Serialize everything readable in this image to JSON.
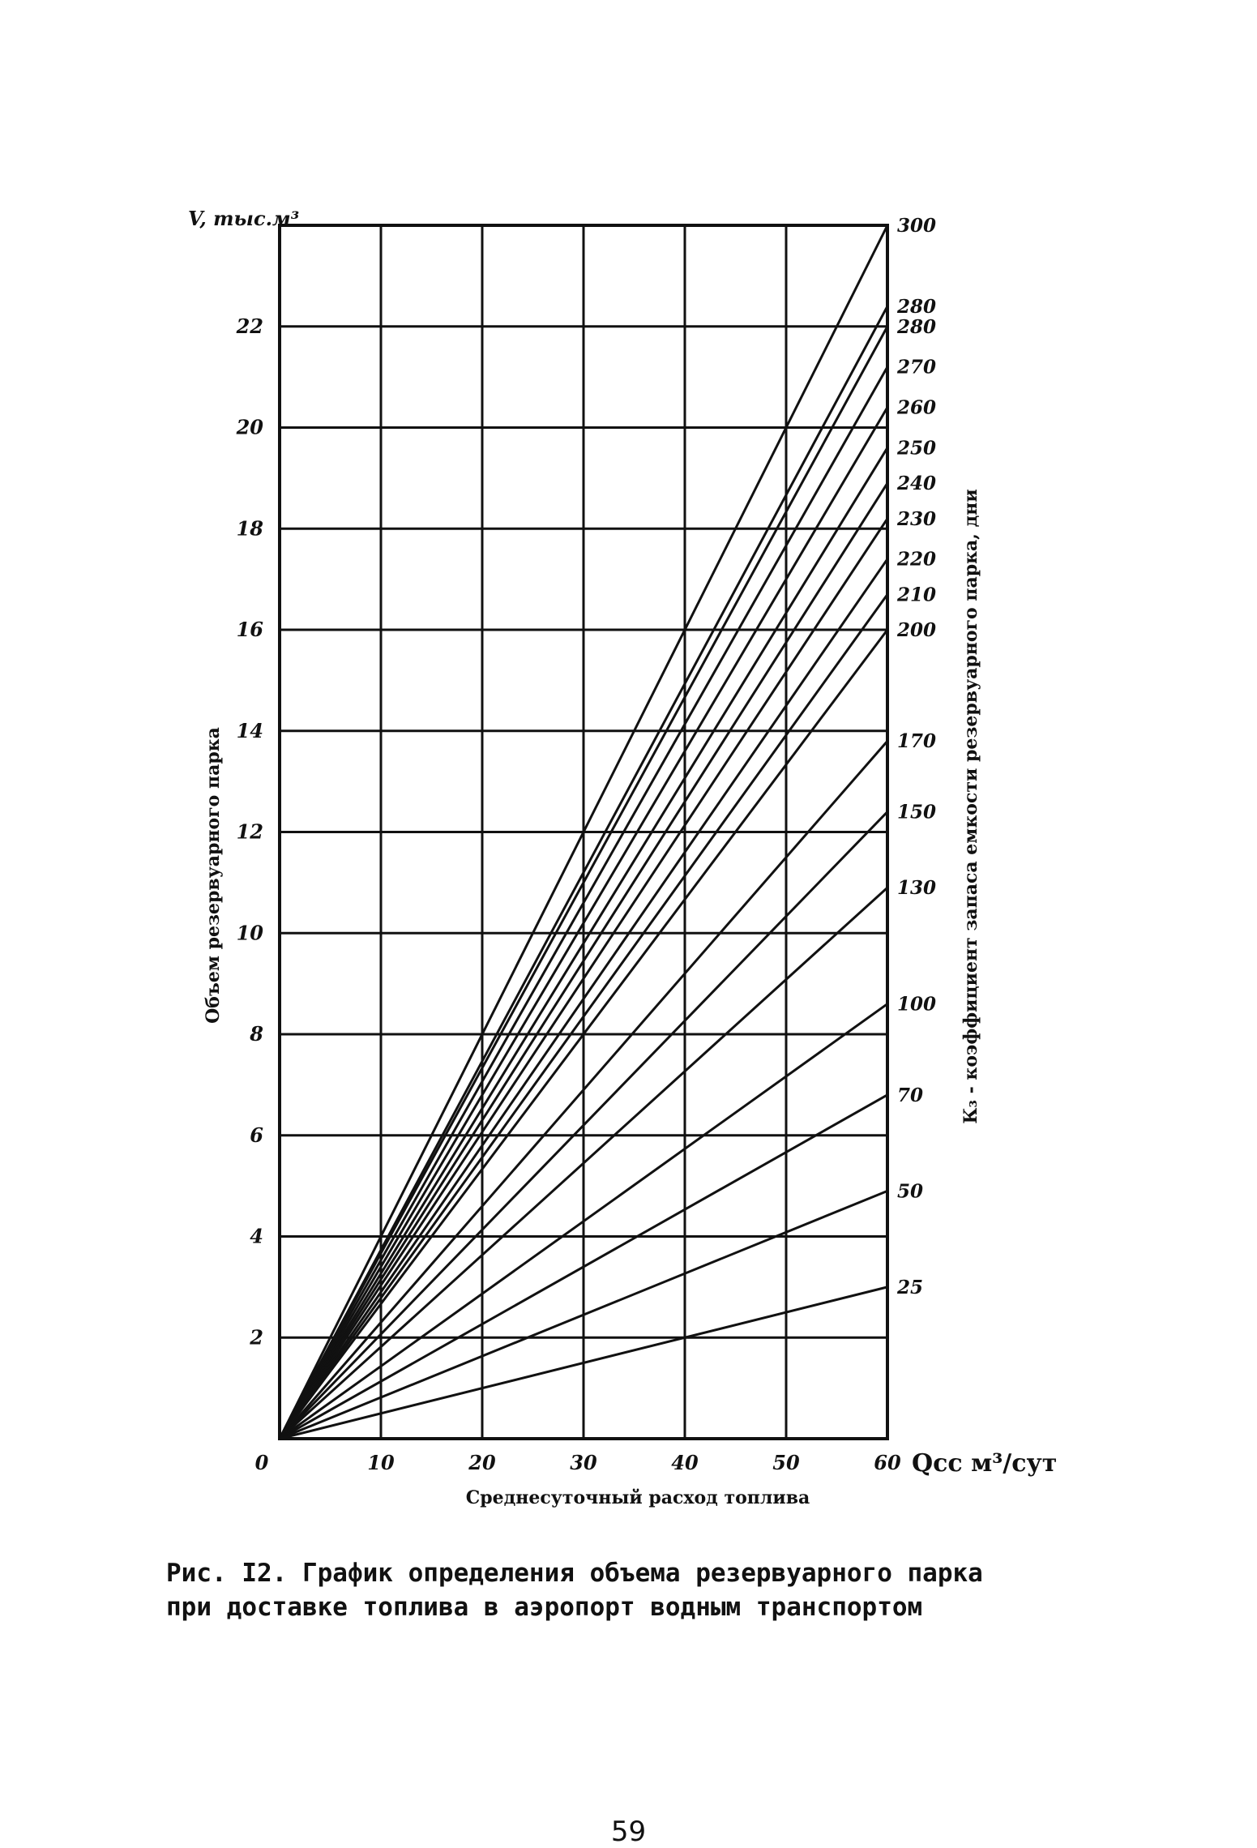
{
  "chart_data": {
    "type": "line",
    "left_axis_label": "V, тыс.м³",
    "left_axis_title": "Объем резервуарного парка",
    "right_axis_title": "К₃ - коэффициент запаса емкости резервуарного парка, дни",
    "x_axis_unit_label": "Qсс м³/сут",
    "x_axis_title": "Среднесуточный расход топлива",
    "x_ticks": [
      "0",
      "10",
      "20",
      "30",
      "40",
      "50",
      "60"
    ],
    "y_ticks": [
      "2",
      "4",
      "6",
      "8",
      "10",
      "12",
      "14",
      "16",
      "18",
      "20",
      "22"
    ],
    "y_tick_values": [
      2,
      4,
      6,
      8,
      10,
      12,
      14,
      16,
      18,
      20,
      22
    ],
    "xlim": [
      0,
      60
    ],
    "ylim": [
      0,
      24
    ],
    "grid": true,
    "series": [
      {
        "label": "300",
        "values": [
          [
            0,
            0
          ],
          [
            60,
            24
          ]
        ]
      },
      {
        "label": "280",
        "values": [
          [
            0,
            0
          ],
          [
            60,
            22.4
          ]
        ]
      },
      {
        "label": "280",
        "values": [
          [
            0,
            0
          ],
          [
            60,
            22
          ]
        ]
      },
      {
        "label": "270",
        "values": [
          [
            0,
            0
          ],
          [
            60,
            21.2
          ]
        ]
      },
      {
        "label": "260",
        "values": [
          [
            0,
            0
          ],
          [
            60,
            20.4
          ]
        ]
      },
      {
        "label": "250",
        "values": [
          [
            0,
            0
          ],
          [
            60,
            19.6
          ]
        ]
      },
      {
        "label": "240",
        "values": [
          [
            0,
            0
          ],
          [
            60,
            18.9
          ]
        ]
      },
      {
        "label": "230",
        "values": [
          [
            0,
            0
          ],
          [
            60,
            18.2
          ]
        ]
      },
      {
        "label": "220",
        "values": [
          [
            0,
            0
          ],
          [
            60,
            17.4
          ]
        ]
      },
      {
        "label": "210",
        "values": [
          [
            0,
            0
          ],
          [
            60,
            16.7
          ]
        ]
      },
      {
        "label": "200",
        "values": [
          [
            0,
            0
          ],
          [
            60,
            16
          ]
        ]
      },
      {
        "label": "170",
        "values": [
          [
            0,
            0
          ],
          [
            60,
            13.8
          ]
        ]
      },
      {
        "label": "150",
        "values": [
          [
            0,
            0
          ],
          [
            60,
            12.4
          ]
        ]
      },
      {
        "label": "130",
        "values": [
          [
            0,
            0
          ],
          [
            60,
            10.9
          ]
        ]
      },
      {
        "label": "100",
        "values": [
          [
            0,
            0
          ],
          [
            60,
            8.6
          ]
        ]
      },
      {
        "label": "70",
        "values": [
          [
            0,
            0
          ],
          [
            60,
            6.8
          ]
        ]
      },
      {
        "label": "50",
        "values": [
          [
            0,
            0
          ],
          [
            60,
            4.9
          ]
        ]
      },
      {
        "label": "25",
        "values": [
          [
            0,
            0
          ],
          [
            60,
            3
          ]
        ]
      }
    ]
  },
  "caption_line1": "Рис. I2. График определения объема резервуарного парка",
  "caption_line2": "при доставке топлива в аэропорт водным транспортом",
  "page_number": "59"
}
